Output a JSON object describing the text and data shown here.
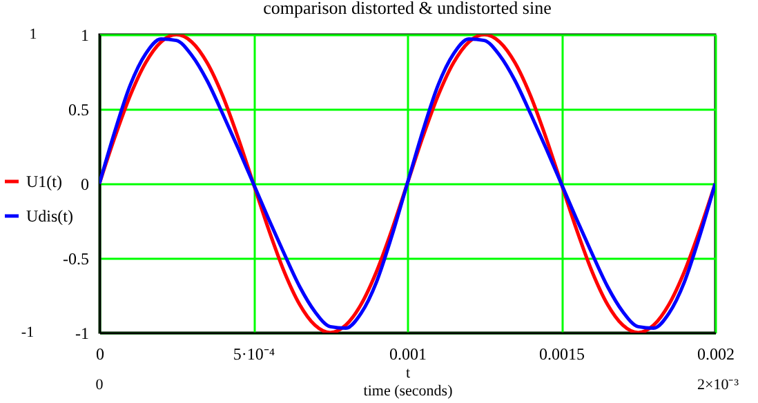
{
  "chart_data": {
    "type": "line",
    "title": "comparison distorted & undistorted sine",
    "xlabel": "t\ntime (seconds)",
    "x": [
      0,
      5e-05,
      0.0001,
      0.00015,
      0.0002,
      0.00025,
      0.0003,
      0.00035,
      0.0004,
      0.00045,
      0.0005,
      0.00055,
      0.0006,
      0.00065,
      0.0007,
      0.00075,
      0.0008,
      0.00085,
      0.0009,
      0.00095,
      0.001,
      0.00105,
      0.0011,
      0.00115,
      0.0012,
      0.00125,
      0.0013,
      0.00135,
      0.0014,
      0.00145,
      0.0015,
      0.00155,
      0.0016,
      0.00165,
      0.0017,
      0.00175,
      0.0018,
      0.00185,
      0.0019,
      0.00195,
      0.002
    ],
    "series": [
      {
        "name": "U1(t)",
        "color": "#ff0000",
        "values": [
          0,
          0.31,
          0.59,
          0.81,
          0.95,
          1,
          0.95,
          0.81,
          0.59,
          0.31,
          0,
          -0.31,
          -0.59,
          -0.81,
          -0.95,
          -1,
          -0.95,
          -0.81,
          -0.59,
          -0.31,
          0,
          0.31,
          0.59,
          0.81,
          0.95,
          1,
          0.95,
          0.81,
          0.59,
          0.31,
          0,
          -0.31,
          -0.59,
          -0.81,
          -0.95,
          -1,
          -0.95,
          -0.81,
          -0.59,
          -0.31,
          0
        ]
      },
      {
        "name": "Udis(t)",
        "color": "#0000ff",
        "values": [
          0,
          0.35,
          0.66,
          0.87,
          0.97,
          0.96,
          0.86,
          0.69,
          0.47,
          0.24,
          0,
          -0.24,
          -0.47,
          -0.69,
          -0.86,
          -0.96,
          -0.97,
          -0.87,
          -0.66,
          -0.35,
          0,
          0.35,
          0.66,
          0.87,
          0.97,
          0.96,
          0.86,
          0.69,
          0.47,
          0.24,
          0,
          -0.24,
          -0.47,
          -0.69,
          -0.86,
          -0.96,
          -0.97,
          -0.87,
          -0.66,
          -0.35,
          0
        ]
      }
    ],
    "xlim": [
      0,
      0.002
    ],
    "xticks": [
      0,
      {
        "value": 0.0005,
        "label": "5·10⁻⁴"
      },
      0.001,
      0.0015,
      0.002
    ],
    "ylim": [
      -1,
      1
    ],
    "yticks": [
      -1,
      -0.5,
      0,
      0.5,
      1
    ],
    "annotations": [
      "1",
      "-1",
      "0",
      "2×10⁻³"
    ],
    "grid": true,
    "legend": "left",
    "marker": "none",
    "line_style": "solid"
  }
}
